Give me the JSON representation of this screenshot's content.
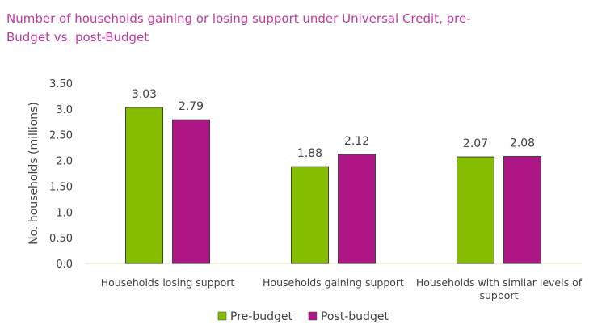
{
  "chart_data": {
    "type": "bar",
    "title": "Number of households gaining or losing support under Universal Credit, pre-Budget vs. post-Budget",
    "ylabel": "No. households (millions)",
    "xlabel": "",
    "ylim": [
      0,
      3.5
    ],
    "yticks": [
      "0.0",
      "0.50",
      "1.0",
      "1.50",
      "2.0",
      "2.50",
      "3.0",
      "3.50"
    ],
    "categories": [
      [
        "Households losing support"
      ],
      [
        "Households gaining support"
      ],
      [
        "Households with similar levels of",
        "support"
      ]
    ],
    "series": [
      {
        "name": "Pre-budget",
        "color": "#84bd00",
        "values": [
          3.03,
          1.88,
          2.07
        ],
        "labels": [
          "3.03",
          "1.88",
          "2.07"
        ]
      },
      {
        "name": "Post-budget",
        "color": "#af1685",
        "values": [
          2.79,
          2.12,
          2.08
        ],
        "labels": [
          "2.79",
          "2.12",
          "2.08"
        ]
      }
    ],
    "grid": false,
    "legend": "bottom"
  }
}
